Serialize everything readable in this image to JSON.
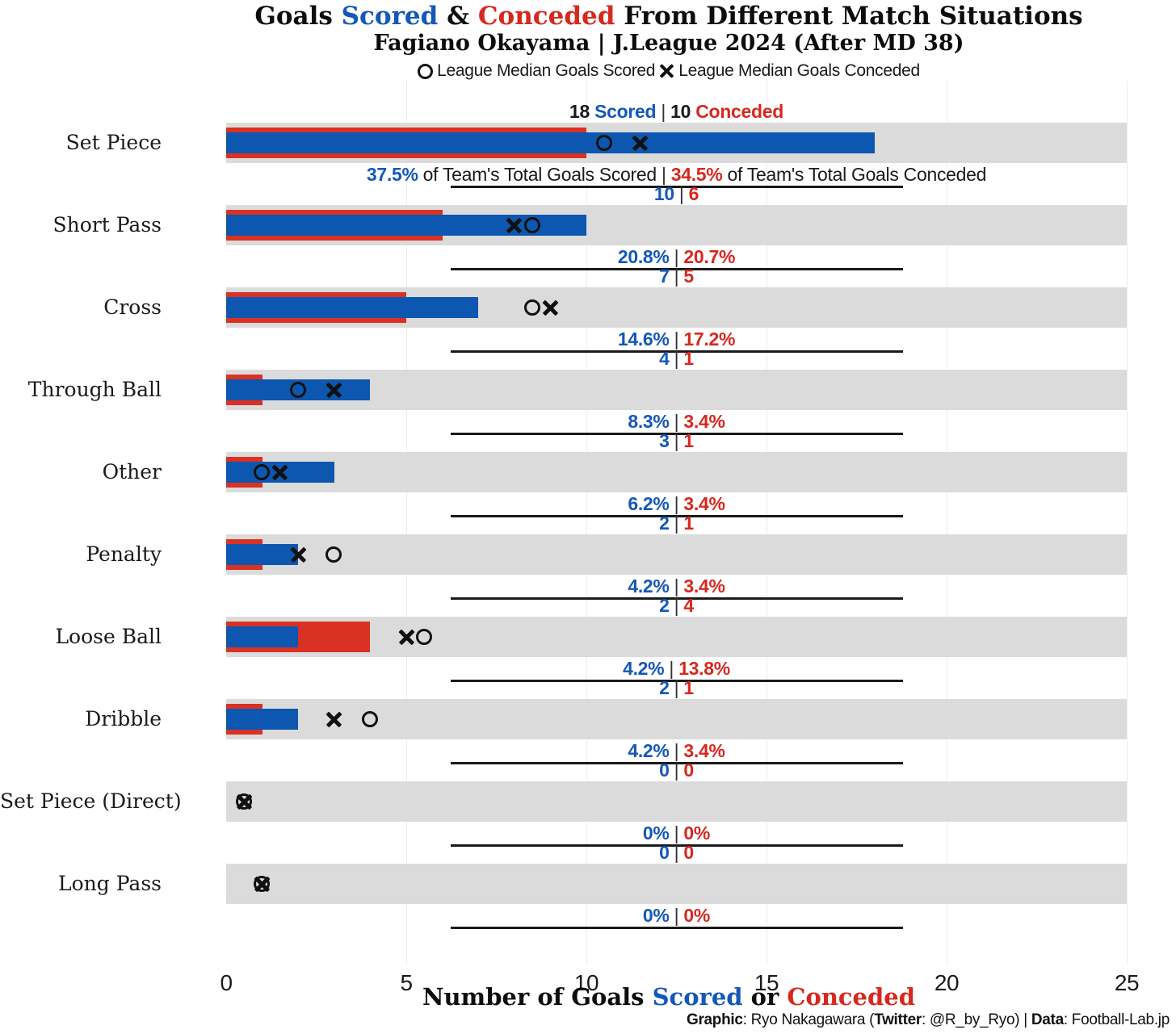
{
  "title": {
    "part1": "Goals ",
    "scored_word": "Scored",
    "part2": " & ",
    "conceded_word": "Conceded",
    "part3": " From Different Match Situations"
  },
  "subtitle": "Fagiano Okayama | J.League 2024 (After MD 38)",
  "legend": {
    "scored_label": "League Median Goals Scored",
    "conceded_label": "League Median Goals Conceded"
  },
  "colors": {
    "bar_blue": "#0d57b0",
    "bar_red": "#d93123",
    "text_blue": "#1458b8",
    "text_red": "#d7281e",
    "background_bar_gray": "#dbdbdb",
    "gridline_gray": "#ececec"
  },
  "axis": {
    "label": {
      "part1": "Number of Goals ",
      "scored_word": "Scored",
      "part2": " or ",
      "conceded_word": "Conceded"
    },
    "ticks": [
      0,
      5,
      10,
      15,
      20,
      25
    ]
  },
  "footer": {
    "segments": [
      {
        "text": "Graphic",
        "bold": true
      },
      {
        "text": ": Ryo Nakagawara (",
        "bold": false
      },
      {
        "text": "Twitter",
        "bold": true
      },
      {
        "text": ": @R_by_Ryo) | ",
        "bold": false
      },
      {
        "text": "Data",
        "bold": true
      },
      {
        "text": ": Football-Lab.jp",
        "bold": false
      }
    ]
  },
  "chart_data": {
    "type": "bar",
    "orientation": "horizontal",
    "xlim": [
      0,
      25
    ],
    "grid": true,
    "words": {
      "scored": "Scored",
      "conceded": "Conceded",
      "pct_scored_suffix": " of Team's Total Goals Scored",
      "pct_conceded_suffix": " of Team's Total Goals Conceded"
    },
    "categories": [
      "Set Piece",
      "Short Pass",
      "Cross",
      "Through Ball",
      "Other",
      "Penalty",
      "Loose Ball",
      "Dribble",
      "Set Piece (Direct)",
      "Long Pass"
    ],
    "series": [
      {
        "name": "Goals Scored",
        "values": [
          18,
          10,
          7,
          4,
          3,
          2,
          2,
          2,
          0,
          0
        ]
      },
      {
        "name": "Goals Conceded",
        "values": [
          10,
          6,
          5,
          1,
          1,
          1,
          4,
          1,
          0,
          0
        ]
      }
    ],
    "rows": [
      {
        "label": "Set Piece",
        "scored": 18,
        "conceded": 10,
        "pct_scored": "37.5%",
        "pct_conceded": "34.5%",
        "median_scored": 10.5,
        "median_conceded": 11.5
      },
      {
        "label": "Short Pass",
        "scored": 10,
        "conceded": 6,
        "pct_scored": "20.8%",
        "pct_conceded": "20.7%",
        "median_scored": 8.5,
        "median_conceded": 8
      },
      {
        "label": "Cross",
        "scored": 7,
        "conceded": 5,
        "pct_scored": "14.6%",
        "pct_conceded": "17.2%",
        "median_scored": 8.5,
        "median_conceded": 9
      },
      {
        "label": "Through Ball",
        "scored": 4,
        "conceded": 1,
        "pct_scored": "8.3%",
        "pct_conceded": "3.4%",
        "median_scored": 2,
        "median_conceded": 3
      },
      {
        "label": "Other",
        "scored": 3,
        "conceded": 1,
        "pct_scored": "6.2%",
        "pct_conceded": "3.4%",
        "median_scored": 1,
        "median_conceded": 1.5
      },
      {
        "label": "Penalty",
        "scored": 2,
        "conceded": 1,
        "pct_scored": "4.2%",
        "pct_conceded": "3.4%",
        "median_scored": 3,
        "median_conceded": 2
      },
      {
        "label": "Loose Ball",
        "scored": 2,
        "conceded": 4,
        "pct_scored": "4.2%",
        "pct_conceded": "13.8%",
        "median_scored": 5.5,
        "median_conceded": 5
      },
      {
        "label": "Dribble",
        "scored": 2,
        "conceded": 1,
        "pct_scored": "4.2%",
        "pct_conceded": "3.4%",
        "median_scored": 4,
        "median_conceded": 3
      },
      {
        "label": "Set Piece (Direct)",
        "scored": 0,
        "conceded": 0,
        "pct_scored": "0%",
        "pct_conceded": "0%",
        "median_scored": 0.5,
        "median_conceded": 0.5
      },
      {
        "label": "Long Pass",
        "scored": 0,
        "conceded": 0,
        "pct_scored": "0%",
        "pct_conceded": "0%",
        "median_scored": 1,
        "median_conceded": 1
      }
    ]
  }
}
